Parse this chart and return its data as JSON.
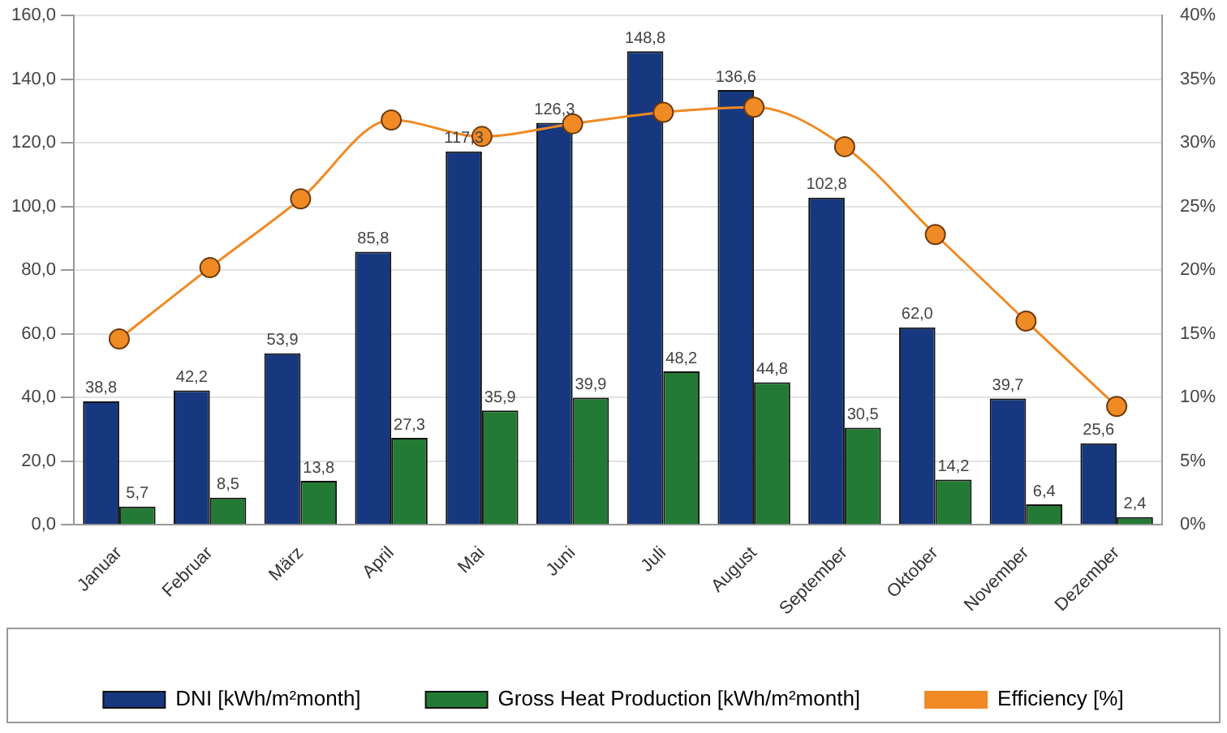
{
  "chart_data": {
    "type": "bar",
    "categories": [
      "Januar",
      "Februar",
      "März",
      "April",
      "Mai",
      "Juni",
      "Juli",
      "August",
      "September",
      "Oktober",
      "November",
      "Dezember"
    ],
    "series": [
      {
        "name": "DNI [kWh/m²month]",
        "color": "#17387f",
        "values": [
          38.8,
          42.2,
          53.9,
          85.8,
          117.3,
          126.3,
          148.8,
          136.6,
          102.8,
          62.0,
          39.7,
          25.6
        ],
        "value_labels": [
          "38,8",
          "42,2",
          "53,9",
          "85,8",
          "117,3",
          "126,3",
          "148,8",
          "136,6",
          "102,8",
          "62,0",
          "39,7",
          "25,6"
        ]
      },
      {
        "name": "Gross Heat Production [kWh/m²month]",
        "color": "#237a35",
        "values": [
          5.7,
          8.5,
          13.8,
          27.3,
          35.9,
          39.9,
          48.2,
          44.8,
          30.5,
          14.2,
          6.4,
          2.4
        ],
        "value_labels": [
          "5,7",
          "8,5",
          "13,8",
          "27,3",
          "35,9",
          "39,9",
          "48,2",
          "44,8",
          "30,5",
          "14,2",
          "6,4",
          "2,4"
        ]
      },
      {
        "name": "Efficiency [%]",
        "type": "line",
        "axis": "y2",
        "color": "#f08a24",
        "marker": "circle",
        "values": [
          14.6,
          20.2,
          25.6,
          31.8,
          30.5,
          31.5,
          32.4,
          32.8,
          29.7,
          22.8,
          16.0,
          9.3
        ]
      }
    ],
    "ylim": [
      0,
      160
    ],
    "yticks": [
      {
        "value": 0,
        "label": "0,0"
      },
      {
        "value": 20,
        "label": "20,0"
      },
      {
        "value": 40,
        "label": "40,0"
      },
      {
        "value": 60,
        "label": "60,0"
      },
      {
        "value": 80,
        "label": "80,0"
      },
      {
        "value": 100,
        "label": "100,0"
      },
      {
        "value": 120,
        "label": "120,0"
      },
      {
        "value": 140,
        "label": "140,0"
      },
      {
        "value": 160,
        "label": "160,0"
      }
    ],
    "y2lim": [
      0,
      40
    ],
    "y2ticks": [
      {
        "value": 0,
        "label": "0%"
      },
      {
        "value": 5,
        "label": "5%"
      },
      {
        "value": 10,
        "label": "10%"
      },
      {
        "value": 15,
        "label": "15%"
      },
      {
        "value": 20,
        "label": "20%"
      },
      {
        "value": 25,
        "label": "25%"
      },
      {
        "value": 30,
        "label": "30%"
      },
      {
        "value": 35,
        "label": "35%"
      },
      {
        "value": 40,
        "label": "40%"
      }
    ],
    "grid": "y",
    "legend": "bottom"
  }
}
